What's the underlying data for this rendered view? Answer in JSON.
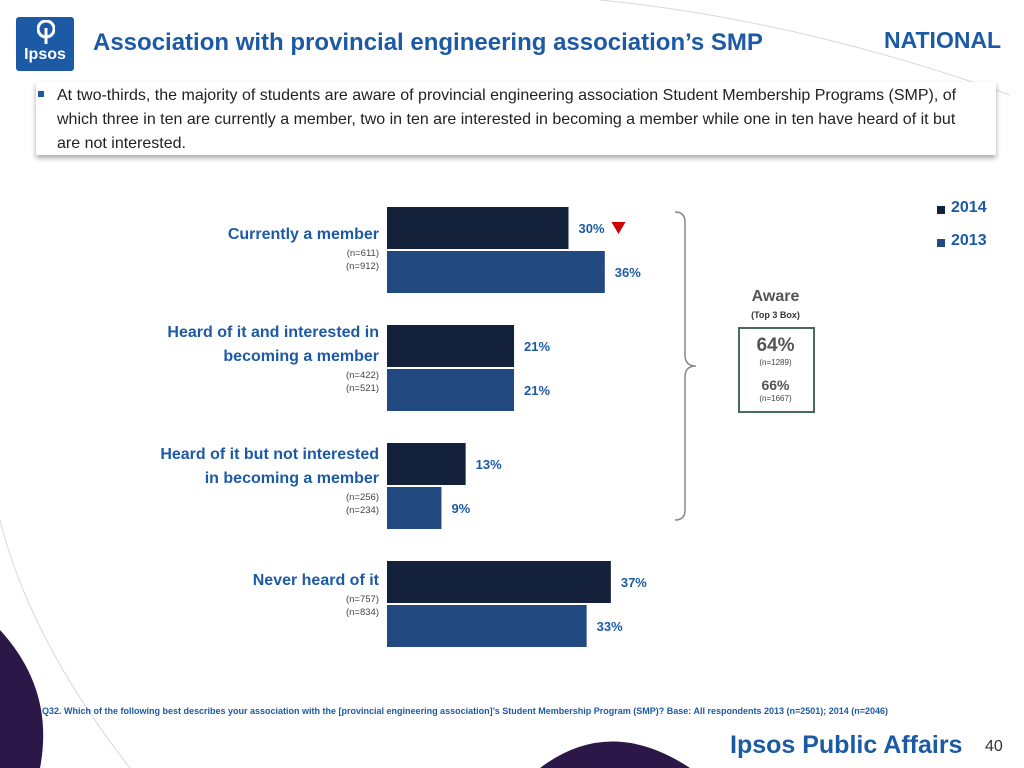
{
  "brand": {
    "logo_text": "Ipsos",
    "footer_brand": "Ipsos Public Affairs",
    "accent": "#1d5aa6"
  },
  "header": {
    "title": "Association with provincial engineering association’s SMP",
    "region": "NATIONAL"
  },
  "summary": "At two-thirds, the majority of students are aware of provincial engineering association Student Membership Programs (SMP), of which three in ten are currently a member, two in ten are interested in becoming a member while one in ten have heard of it but are not interested.",
  "chart_data": {
    "type": "bar",
    "orientation": "horizontal",
    "categories": [
      {
        "label_lines": [
          "Currently a member"
        ],
        "n_2014": "(n=611)",
        "n_2013": "(n=912)"
      },
      {
        "label_lines": [
          "Heard of it and interested in",
          "becoming a member"
        ],
        "n_2014": "(n=422)",
        "n_2013": "(n=521)"
      },
      {
        "label_lines": [
          "Heard of it but not interested",
          "in becoming a member"
        ],
        "n_2014": "(n=256)",
        "n_2013": "(n=234)"
      },
      {
        "label_lines": [
          "Never heard  of it"
        ],
        "n_2014": "(n=757)",
        "n_2013": "(n=834)"
      }
    ],
    "series": [
      {
        "name": "2014",
        "color": "#14213b",
        "values": [
          30,
          21,
          13,
          37
        ],
        "labels": [
          "30%",
          "21%",
          "13%",
          "37%"
        ]
      },
      {
        "name": "2013",
        "color": "#224a80",
        "values": [
          36,
          21,
          9,
          33
        ],
        "labels": [
          "36%",
          "21%",
          "9%",
          "33%"
        ]
      }
    ],
    "unit": "%",
    "significant_decrease_marker": {
      "series": "2014",
      "category_index": 0,
      "color": "#cc0000"
    },
    "legend": [
      "2014",
      "2013"
    ],
    "legend_position": "top-right",
    "aware_summary": {
      "title": "Aware",
      "subtitle": "(Top 3 Box)",
      "value_2014": "64%",
      "n_2014": "(n=1289)",
      "value_2013": "66%",
      "n_2013": "(n=1667)"
    }
  },
  "footnote": "Q32. Which of the following best describes your association with the [provincial engineering association]’s Student Membership Program (SMP)? Base: All  respondents 2013 (n=2501); 2014 (n=2046)",
  "page_number": "40"
}
